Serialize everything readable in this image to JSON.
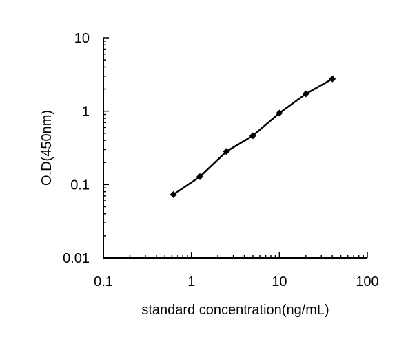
{
  "chart_data": {
    "type": "line",
    "title": "",
    "xlabel": "standard concentration(ng/mL)",
    "ylabel": "O.D(450nm)",
    "x_scale": "log",
    "y_scale": "log",
    "xlim": [
      0.1,
      100
    ],
    "ylim": [
      0.01,
      10
    ],
    "x_ticks": [
      "0.1",
      "1",
      "10",
      "100"
    ],
    "y_ticks": [
      "0.01",
      "0.1",
      "1",
      "10"
    ],
    "grid": false,
    "legend": "none",
    "series": [
      {
        "x": [
          0.625,
          1.25,
          2.5,
          5,
          10,
          20,
          40
        ],
        "y": [
          0.073,
          0.128,
          0.282,
          0.463,
          0.94,
          1.72,
          2.75
        ],
        "color": "#000000",
        "marker": "diamond"
      }
    ]
  }
}
